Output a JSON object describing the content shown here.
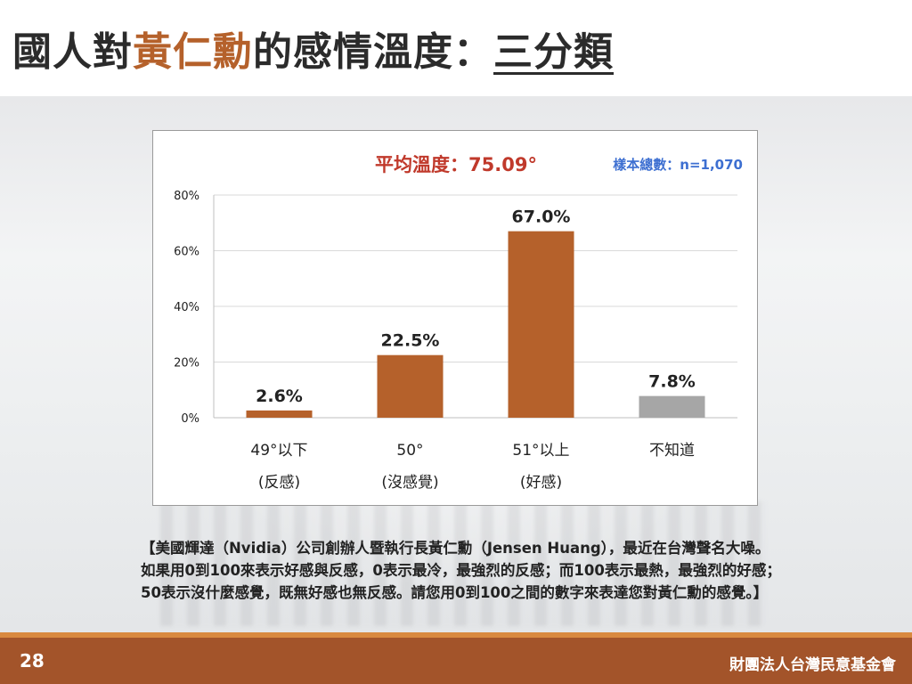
{
  "title": {
    "part1": "國人對",
    "part2": "黃仁勳",
    "part3": "的感情溫度：",
    "part4": "三分類"
  },
  "chart_data": {
    "type": "bar",
    "average_label": "平均溫度：75.09°",
    "sample_label": "樣本總數：n=1,070",
    "ylim": [
      0,
      80
    ],
    "y_ticks": [
      "0%",
      "20%",
      "40%",
      "60%",
      "80%"
    ],
    "grid": true,
    "categories": [
      {
        "line1": "49°以下",
        "line2": "(反感)",
        "value": 2.6,
        "label": "2.6%",
        "color": "#b5612b"
      },
      {
        "line1": "50°",
        "line2": "(沒感覺)",
        "value": 22.5,
        "label": "22.5%",
        "color": "#b5612b"
      },
      {
        "line1": "51°以上",
        "line2": "(好感)",
        "value": 67.0,
        "label": "67.0%",
        "color": "#b5612b"
      },
      {
        "line1": "不知道",
        "line2": "",
        "value": 7.8,
        "label": "7.8%",
        "color": "#a6a6a6"
      }
    ],
    "colors": {
      "average": "#c0392b",
      "sample": "#3d6fd1"
    }
  },
  "caption": "【美國輝達（Nvidia）公司創辦人暨執行長黃仁勳（Jensen Huang），最近在台灣聲名大噪。如果用0到100來表示好感與反感，0表示最冷，最強烈的反感；而100表示最熱，最強烈的好感；50表示沒什麼感覺，既無好感也無反感。請您用0到100之間的數字來表達您對黃仁勳的感覺。】",
  "footer": {
    "page_number": "28",
    "organization": "財團法人台灣民意基金會"
  },
  "colors": {
    "accent": "#b5612b",
    "footer": "#a3542a",
    "footer_line": "#d9893f"
  }
}
